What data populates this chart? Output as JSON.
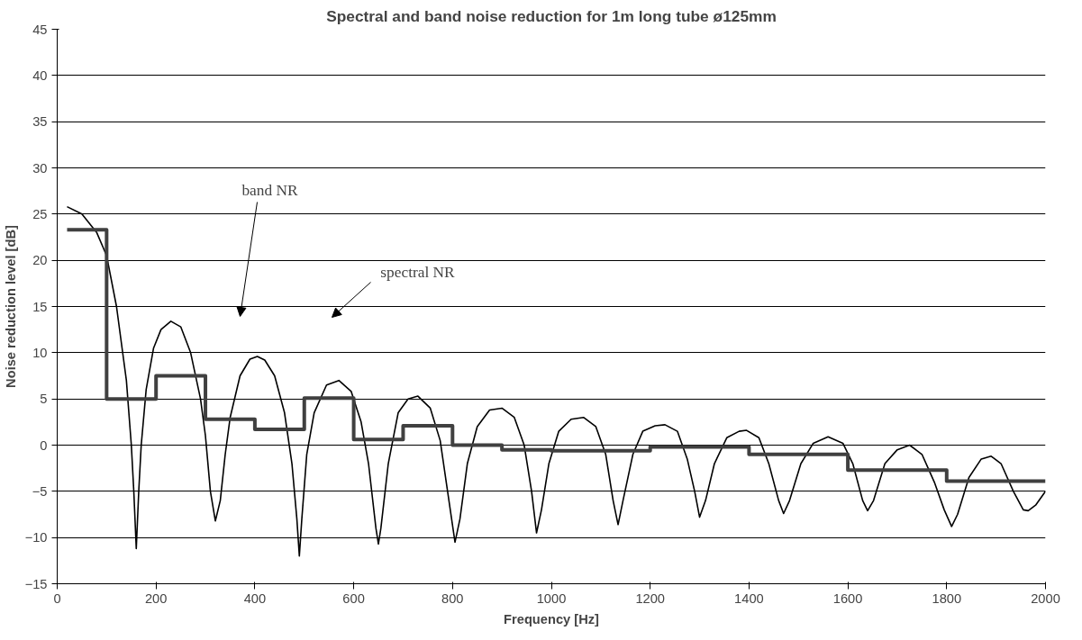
{
  "chart_data": {
    "type": "line",
    "title": "Spectral and band noise reduction for 1m long tube ø125mm",
    "xlabel": "Frequency [Hz]",
    "ylabel": "Noise reduction level [dB]",
    "xlim": [
      0,
      2000
    ],
    "xticks": [
      0,
      200,
      400,
      600,
      800,
      1000,
      1200,
      1400,
      1600,
      1800,
      2000
    ],
    "ylim": [
      -15,
      45
    ],
    "yticks": [
      -15,
      -10,
      -5,
      0,
      5,
      10,
      15,
      20,
      25,
      30,
      35,
      40,
      45
    ],
    "grid": "y",
    "marker": "none",
    "line_style": "solid",
    "series": [
      {
        "color": "#000000",
        "x": [
          20,
          50,
          80,
          100,
          120,
          140,
          150,
          155,
          160,
          165,
          170,
          180,
          195,
          210,
          230,
          250,
          270,
          290,
          300,
          310,
          320,
          330,
          340,
          350,
          370,
          390,
          405,
          420,
          440,
          460,
          475,
          485,
          490,
          495,
          505,
          520,
          545,
          570,
          595,
          615,
          630,
          645,
          650,
          655,
          670,
          690,
          710,
          730,
          755,
          775,
          790,
          805,
          815,
          830,
          850,
          875,
          900,
          925,
          945,
          960,
          970,
          980,
          995,
          1015,
          1040,
          1065,
          1090,
          1110,
          1125,
          1135,
          1145,
          1165,
          1185,
          1210,
          1230,
          1255,
          1275,
          1290,
          1300,
          1312,
          1330,
          1355,
          1380,
          1395,
          1420,
          1440,
          1460,
          1470,
          1482,
          1505,
          1530,
          1560,
          1590,
          1610,
          1630,
          1640,
          1652,
          1675,
          1700,
          1725,
          1750,
          1775,
          1795,
          1810,
          1822,
          1845,
          1870,
          1890,
          1910,
          1935,
          1955,
          1965,
          1980,
          2000
        ],
        "values": [
          25.8,
          25,
          23,
          20.5,
          15,
          7,
          0,
          -5,
          -11.2,
          -5,
          0,
          6,
          10.5,
          12.5,
          13.4,
          12.8,
          10,
          5,
          1,
          -5,
          -8.2,
          -6,
          -1,
          3,
          7.5,
          9.3,
          9.6,
          9.2,
          7.5,
          3.5,
          -2,
          -8,
          -12,
          -8,
          -1,
          3.5,
          6.5,
          7,
          5.8,
          2.5,
          -2,
          -9,
          -10.7,
          -9,
          -2,
          3.5,
          5,
          5.3,
          4,
          0.5,
          -5,
          -10.5,
          -8,
          -2,
          2,
          3.8,
          4,
          3,
          0,
          -5,
          -9.5,
          -7,
          -2,
          1.5,
          2.8,
          3,
          2,
          -1,
          -6,
          -8.6,
          -6,
          -1,
          1.5,
          2.1,
          2.2,
          1.5,
          -1.5,
          -5,
          -7.8,
          -6,
          -2,
          0.8,
          1.5,
          1.6,
          0.8,
          -2,
          -6,
          -7.4,
          -6,
          -2,
          0.2,
          0.9,
          0.2,
          -2,
          -6,
          -7.1,
          -6,
          -2,
          -0.5,
          0,
          -1,
          -4,
          -7,
          -8.8,
          -7.5,
          -3.5,
          -1.5,
          -1.2,
          -2,
          -5,
          -7,
          -7.1,
          -6.5,
          -5
        ]
      },
      {
        "type": "step",
        "color": "#404040",
        "x": [
          20,
          100,
          200,
          300,
          400,
          500,
          600,
          700,
          800,
          900,
          1000,
          1200,
          1400,
          1600,
          1800,
          2000
        ],
        "values": [
          23.3,
          5,
          7.5,
          2.8,
          1.7,
          5.1,
          0.6,
          2.1,
          0,
          -0.5,
          -0.6,
          -0.2,
          -1,
          -2.7,
          -3.9,
          -3.9
        ]
      }
    ],
    "annotations": [
      "band NR",
      "spectral NR"
    ]
  }
}
